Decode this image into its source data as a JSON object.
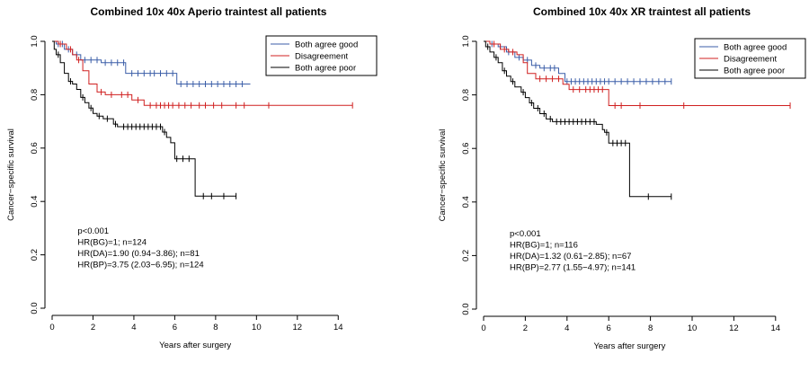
{
  "chart_data": [
    {
      "type": "line",
      "title": "Combined 10x 40x Aperio traintest all patients",
      "xlabel": "Years after surgery",
      "ylabel": "Cancer−specific survival",
      "xlim": [
        0,
        15
      ],
      "ylim": [
        0,
        1
      ],
      "xticks": [
        "0",
        "2",
        "4",
        "6",
        "8",
        "10",
        "12",
        "14"
      ],
      "yticks": [
        "0.0",
        "0.2",
        "0.4",
        "0.6",
        "0.8",
        "1.0"
      ],
      "grid": false,
      "legend": "top-right",
      "stats": [
        "p<0.001",
        "HR(BG)=1; n=124",
        "HR(DA)=1.90 (0.94−3.86); n=81",
        "HR(BP)=3.75 (2.03−6.95); n=124"
      ],
      "series": [
        {
          "name": "Both agree good",
          "color": "#3b5ea8",
          "x": [
            0,
            0.2,
            0.6,
            1.0,
            1.4,
            2.4,
            3.6,
            6.1,
            9.7
          ],
          "y": [
            1.0,
            0.99,
            0.97,
            0.95,
            0.93,
            0.92,
            0.88,
            0.84,
            0.84
          ],
          "censor": [
            0.3,
            0.5,
            0.8,
            1.2,
            1.6,
            1.9,
            2.2,
            2.6,
            2.9,
            3.2,
            3.5,
            3.9,
            4.2,
            4.5,
            4.8,
            5.0,
            5.3,
            5.6,
            5.9,
            6.3,
            6.6,
            6.9,
            7.2,
            7.5,
            7.8,
            8.1,
            8.4,
            8.7,
            9.0,
            9.3
          ]
        },
        {
          "name": "Disagreement",
          "color": "#d02020",
          "x": [
            0,
            0.3,
            0.7,
            1.0,
            1.2,
            1.5,
            1.8,
            2.2,
            2.6,
            3.9,
            4.5,
            14.7
          ],
          "y": [
            1.0,
            0.99,
            0.97,
            0.95,
            0.93,
            0.89,
            0.84,
            0.81,
            0.8,
            0.78,
            0.76,
            0.76
          ],
          "censor": [
            0.4,
            0.9,
            1.3,
            2.4,
            2.9,
            3.4,
            3.7,
            4.2,
            4.8,
            5.1,
            5.3,
            5.5,
            5.7,
            5.9,
            6.2,
            6.5,
            6.8,
            7.2,
            7.5,
            7.9,
            8.3,
            9.0,
            9.4,
            10.6,
            14.7
          ]
        },
        {
          "name": "Both agree poor",
          "color": "#000000",
          "x": [
            0,
            0.1,
            0.2,
            0.4,
            0.6,
            0.8,
            1.0,
            1.2,
            1.4,
            1.6,
            1.8,
            2.0,
            2.2,
            2.5,
            3.0,
            3.2,
            5.4,
            5.6,
            5.8,
            6.0,
            6.2,
            7.0,
            9.0
          ],
          "y": [
            1.0,
            0.97,
            0.95,
            0.92,
            0.88,
            0.85,
            0.84,
            0.82,
            0.79,
            0.77,
            0.75,
            0.73,
            0.72,
            0.71,
            0.69,
            0.68,
            0.66,
            0.64,
            0.62,
            0.56,
            0.56,
            0.42,
            0.42
          ],
          "censor": [
            0.3,
            0.9,
            1.5,
            1.9,
            2.3,
            2.7,
            3.1,
            3.5,
            3.7,
            3.9,
            4.1,
            4.3,
            4.5,
            4.7,
            4.9,
            5.1,
            5.3,
            5.5,
            6.1,
            6.4,
            6.7,
            7.4,
            7.8,
            8.4,
            9.0
          ]
        }
      ]
    },
    {
      "type": "line",
      "title": "Combined 10x 40x XR traintest all patients",
      "xlabel": "Years after surgery",
      "ylabel": "Cancer−specific survival",
      "xlim": [
        0,
        15
      ],
      "ylim": [
        0,
        1
      ],
      "xticks": [
        "0",
        "2",
        "4",
        "6",
        "8",
        "10",
        "12",
        "14"
      ],
      "yticks": [
        "0.0",
        "0.2",
        "0.4",
        "0.6",
        "0.8",
        "1.0"
      ],
      "grid": false,
      "legend": "top-right",
      "stats": [
        "p<0.001",
        "HR(BG)=1; n=116",
        "HR(DA)=1.32 (0.61−2.85); n=67",
        "HR(BP)=2.77 (1.55−4.97); n=141"
      ],
      "series": [
        {
          "name": "Both agree good",
          "color": "#3b5ea8",
          "x": [
            0,
            0.3,
            0.7,
            1.1,
            1.5,
            1.9,
            2.3,
            2.7,
            3.6,
            3.9,
            9.0
          ],
          "y": [
            1.0,
            0.99,
            0.98,
            0.96,
            0.94,
            0.93,
            0.91,
            0.9,
            0.88,
            0.85,
            0.85
          ],
          "censor": [
            0.4,
            0.8,
            1.2,
            1.7,
            2.1,
            2.5,
            2.9,
            3.2,
            3.4,
            4.0,
            4.2,
            4.4,
            4.6,
            4.8,
            5.0,
            5.2,
            5.4,
            5.6,
            5.8,
            6.0,
            6.3,
            6.6,
            6.9,
            7.2,
            7.5,
            7.8,
            8.1,
            8.4,
            8.7,
            9.0
          ]
        },
        {
          "name": "Disagreement",
          "color": "#d02020",
          "x": [
            0,
            0.3,
            0.8,
            1.2,
            1.6,
            1.9,
            2.1,
            2.5,
            3.8,
            4.1,
            5.9,
            6.0,
            14.7
          ],
          "y": [
            1.0,
            0.99,
            0.97,
            0.96,
            0.95,
            0.92,
            0.88,
            0.86,
            0.84,
            0.82,
            0.82,
            0.76,
            0.76
          ],
          "censor": [
            0.5,
            1.0,
            1.4,
            2.7,
            3.0,
            3.3,
            3.6,
            4.3,
            4.6,
            4.9,
            5.1,
            5.3,
            5.5,
            5.7,
            6.3,
            6.6,
            7.5,
            9.6,
            14.7
          ]
        },
        {
          "name": "Both agree poor",
          "color": "#000000",
          "x": [
            0,
            0.1,
            0.3,
            0.5,
            0.7,
            0.9,
            1.1,
            1.3,
            1.5,
            1.8,
            2.0,
            2.2,
            2.4,
            2.7,
            3.0,
            3.3,
            5.4,
            5.7,
            5.8,
            6.0,
            7.0,
            9.0
          ],
          "y": [
            1.0,
            0.98,
            0.96,
            0.94,
            0.92,
            0.89,
            0.87,
            0.85,
            0.83,
            0.81,
            0.79,
            0.77,
            0.75,
            0.73,
            0.71,
            0.7,
            0.69,
            0.67,
            0.66,
            0.62,
            0.42,
            0.42
          ],
          "censor": [
            0.2,
            0.6,
            1.0,
            1.4,
            1.9,
            2.3,
            2.6,
            2.9,
            3.2,
            3.5,
            3.7,
            3.9,
            4.1,
            4.3,
            4.5,
            4.7,
            4.9,
            5.1,
            5.3,
            5.9,
            6.2,
            6.4,
            6.6,
            6.8,
            7.9,
            9.0
          ]
        }
      ]
    }
  ]
}
